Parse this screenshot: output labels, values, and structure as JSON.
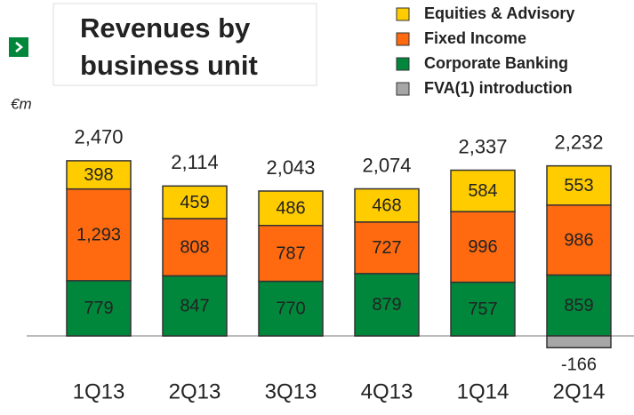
{
  "chart_data": {
    "type": "stacked_bar",
    "title": [
      "Revenues by",
      "business unit"
    ],
    "unit": "€m",
    "categories": [
      "1Q13",
      "2Q13",
      "3Q13",
      "4Q13",
      "1Q14",
      "2Q14"
    ],
    "series": [
      {
        "name": "Corporate Banking",
        "color": "#00873c",
        "values": [
          779,
          847,
          770,
          879,
          757,
          859
        ]
      },
      {
        "name": "Fixed Income",
        "color": "#ff6a10",
        "values": [
          1293,
          808,
          787,
          727,
          996,
          986
        ],
        "value_labels": [
          "1,293",
          "808",
          "787",
          "727",
          "996",
          "986"
        ]
      },
      {
        "name": "Equities & Advisory",
        "color": "#ffcc00",
        "values": [
          398,
          459,
          486,
          468,
          584,
          553
        ]
      },
      {
        "name": "FVA(1) introduction",
        "color": "#a6a6a6",
        "values": [
          null,
          null,
          null,
          null,
          null,
          -166
        ]
      }
    ],
    "legend_order": [
      2,
      1,
      0,
      3
    ],
    "totals": {
      "values": [
        2470,
        2114,
        2043,
        2074,
        2337,
        2232
      ],
      "value_labels": [
        "2,470",
        "2,114",
        "2,043",
        "2,074",
        "2,337",
        "2,232"
      ]
    }
  }
}
